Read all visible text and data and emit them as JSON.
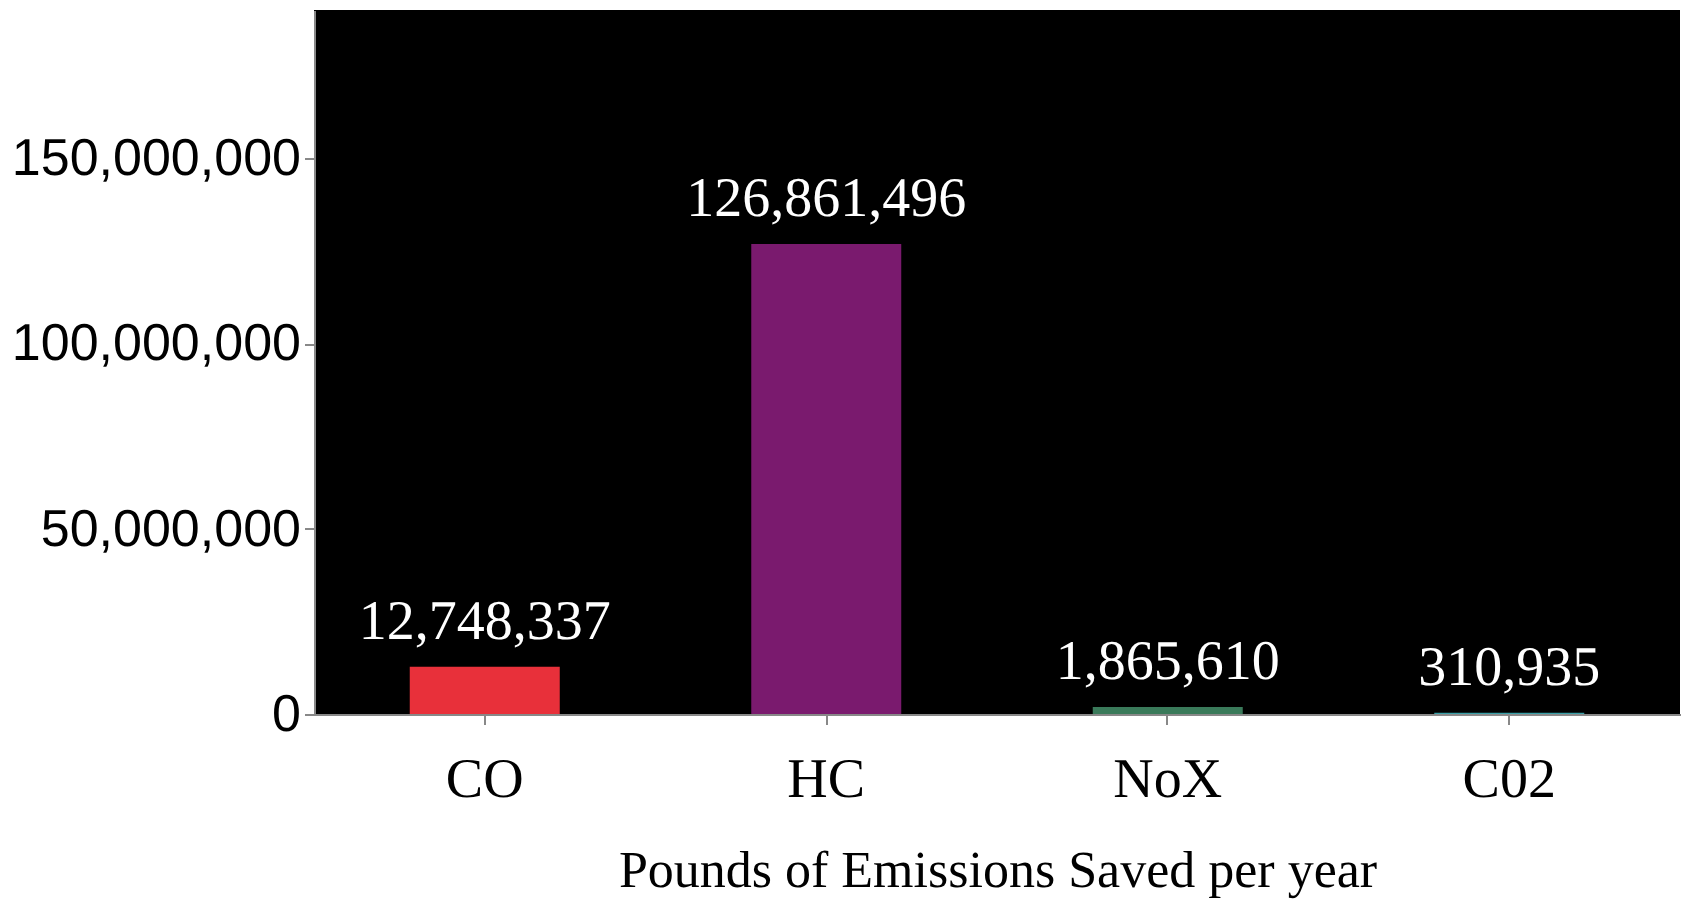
{
  "chart_data": {
    "type": "bar",
    "xlabel": "Pounds of Emissions Saved per year",
    "categories": [
      "CO",
      "HC",
      "NoX",
      "C02"
    ],
    "values": [
      12748337,
      126861496,
      1865610,
      310935
    ],
    "colors": [
      "#e8303a",
      "#7a1a6e",
      "#3a7a5a",
      "#3aa0a8"
    ],
    "ylim": [
      0,
      190000000
    ],
    "yticks": [
      0,
      {
        "value": 50000000,
        "label": "50,000,000"
      },
      {
        "value": 100000000,
        "label": "100,000,000"
      },
      {
        "value": 150000000,
        "label": "150,000,000"
      }
    ],
    "value_labels": [
      "12,748,337",
      "126,861,496",
      "1,865,610",
      "310,935"
    ],
    "grid": false
  }
}
